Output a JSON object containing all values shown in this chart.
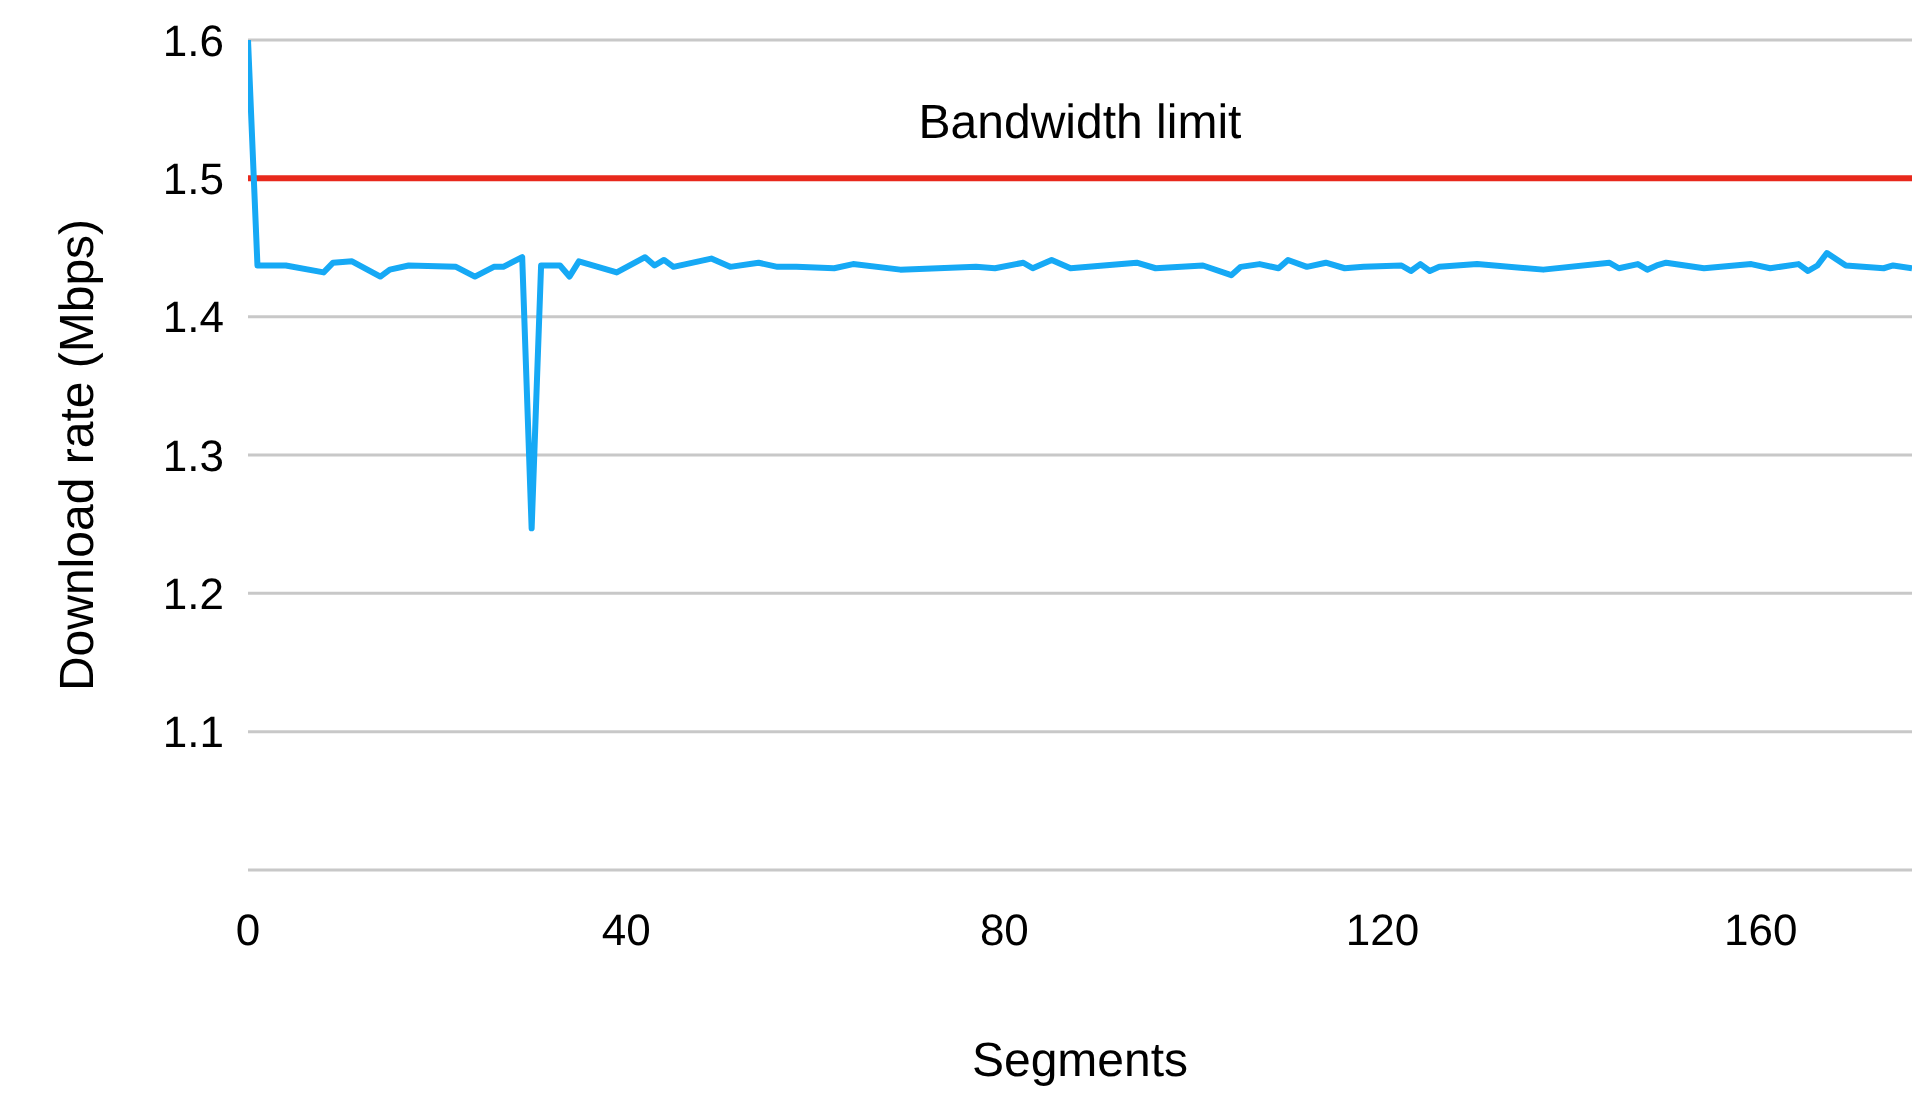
{
  "chart_data": {
    "type": "line",
    "xlabel": "Segments",
    "ylabel": "Download rate (Mbps)",
    "xlim": [
      0,
      176
    ],
    "xticks": [
      0,
      40,
      80,
      120,
      160
    ],
    "ylim": [
      1.0,
      1.6
    ],
    "yticks": [
      {
        "value": 1.0,
        "label": null
      },
      1.1,
      1.2,
      1.3,
      1.4,
      1.5,
      1.6
    ],
    "grid": "y",
    "marker": "none",
    "line_style": "solid",
    "ref_lines": [
      {
        "axis": "y",
        "value": 1.5,
        "label": "Bandwidth limit",
        "color": "#e8291c"
      }
    ],
    "series": [
      {
        "color": "#16a9f5",
        "x": [
          0,
          1,
          4,
          8,
          9,
          11,
          14,
          15,
          17,
          22,
          24,
          26,
          27,
          29,
          30,
          31,
          33,
          34,
          35,
          39,
          42,
          43,
          44,
          45,
          49,
          51,
          54,
          56,
          58,
          62,
          64,
          69,
          77,
          79,
          82,
          83,
          85,
          87,
          94,
          96,
          101,
          104,
          105,
          107,
          109,
          110,
          112,
          114,
          116,
          118,
          122,
          123,
          124,
          125,
          126,
          130,
          137,
          144,
          145,
          147,
          148,
          149,
          150,
          154,
          159,
          161,
          164,
          165,
          166,
          167,
          169,
          173,
          174,
          176
        ],
        "values": [
          1.6,
          1.437,
          1.437,
          1.432,
          1.439,
          1.44,
          1.429,
          1.434,
          1.437,
          1.436,
          1.429,
          1.436,
          1.436,
          1.443,
          1.247,
          1.437,
          1.437,
          1.429,
          1.44,
          1.432,
          1.443,
          1.437,
          1.441,
          1.436,
          1.442,
          1.436,
          1.439,
          1.436,
          1.436,
          1.435,
          1.438,
          1.434,
          1.436,
          1.435,
          1.439,
          1.435,
          1.441,
          1.435,
          1.439,
          1.435,
          1.437,
          1.43,
          1.436,
          1.438,
          1.435,
          1.441,
          1.436,
          1.439,
          1.435,
          1.436,
          1.437,
          1.433,
          1.438,
          1.433,
          1.436,
          1.438,
          1.434,
          1.439,
          1.435,
          1.438,
          1.434,
          1.437,
          1.439,
          1.435,
          1.438,
          1.435,
          1.438,
          1.433,
          1.437,
          1.446,
          1.437,
          1.435,
          1.437,
          1.435
        ]
      }
    ]
  }
}
